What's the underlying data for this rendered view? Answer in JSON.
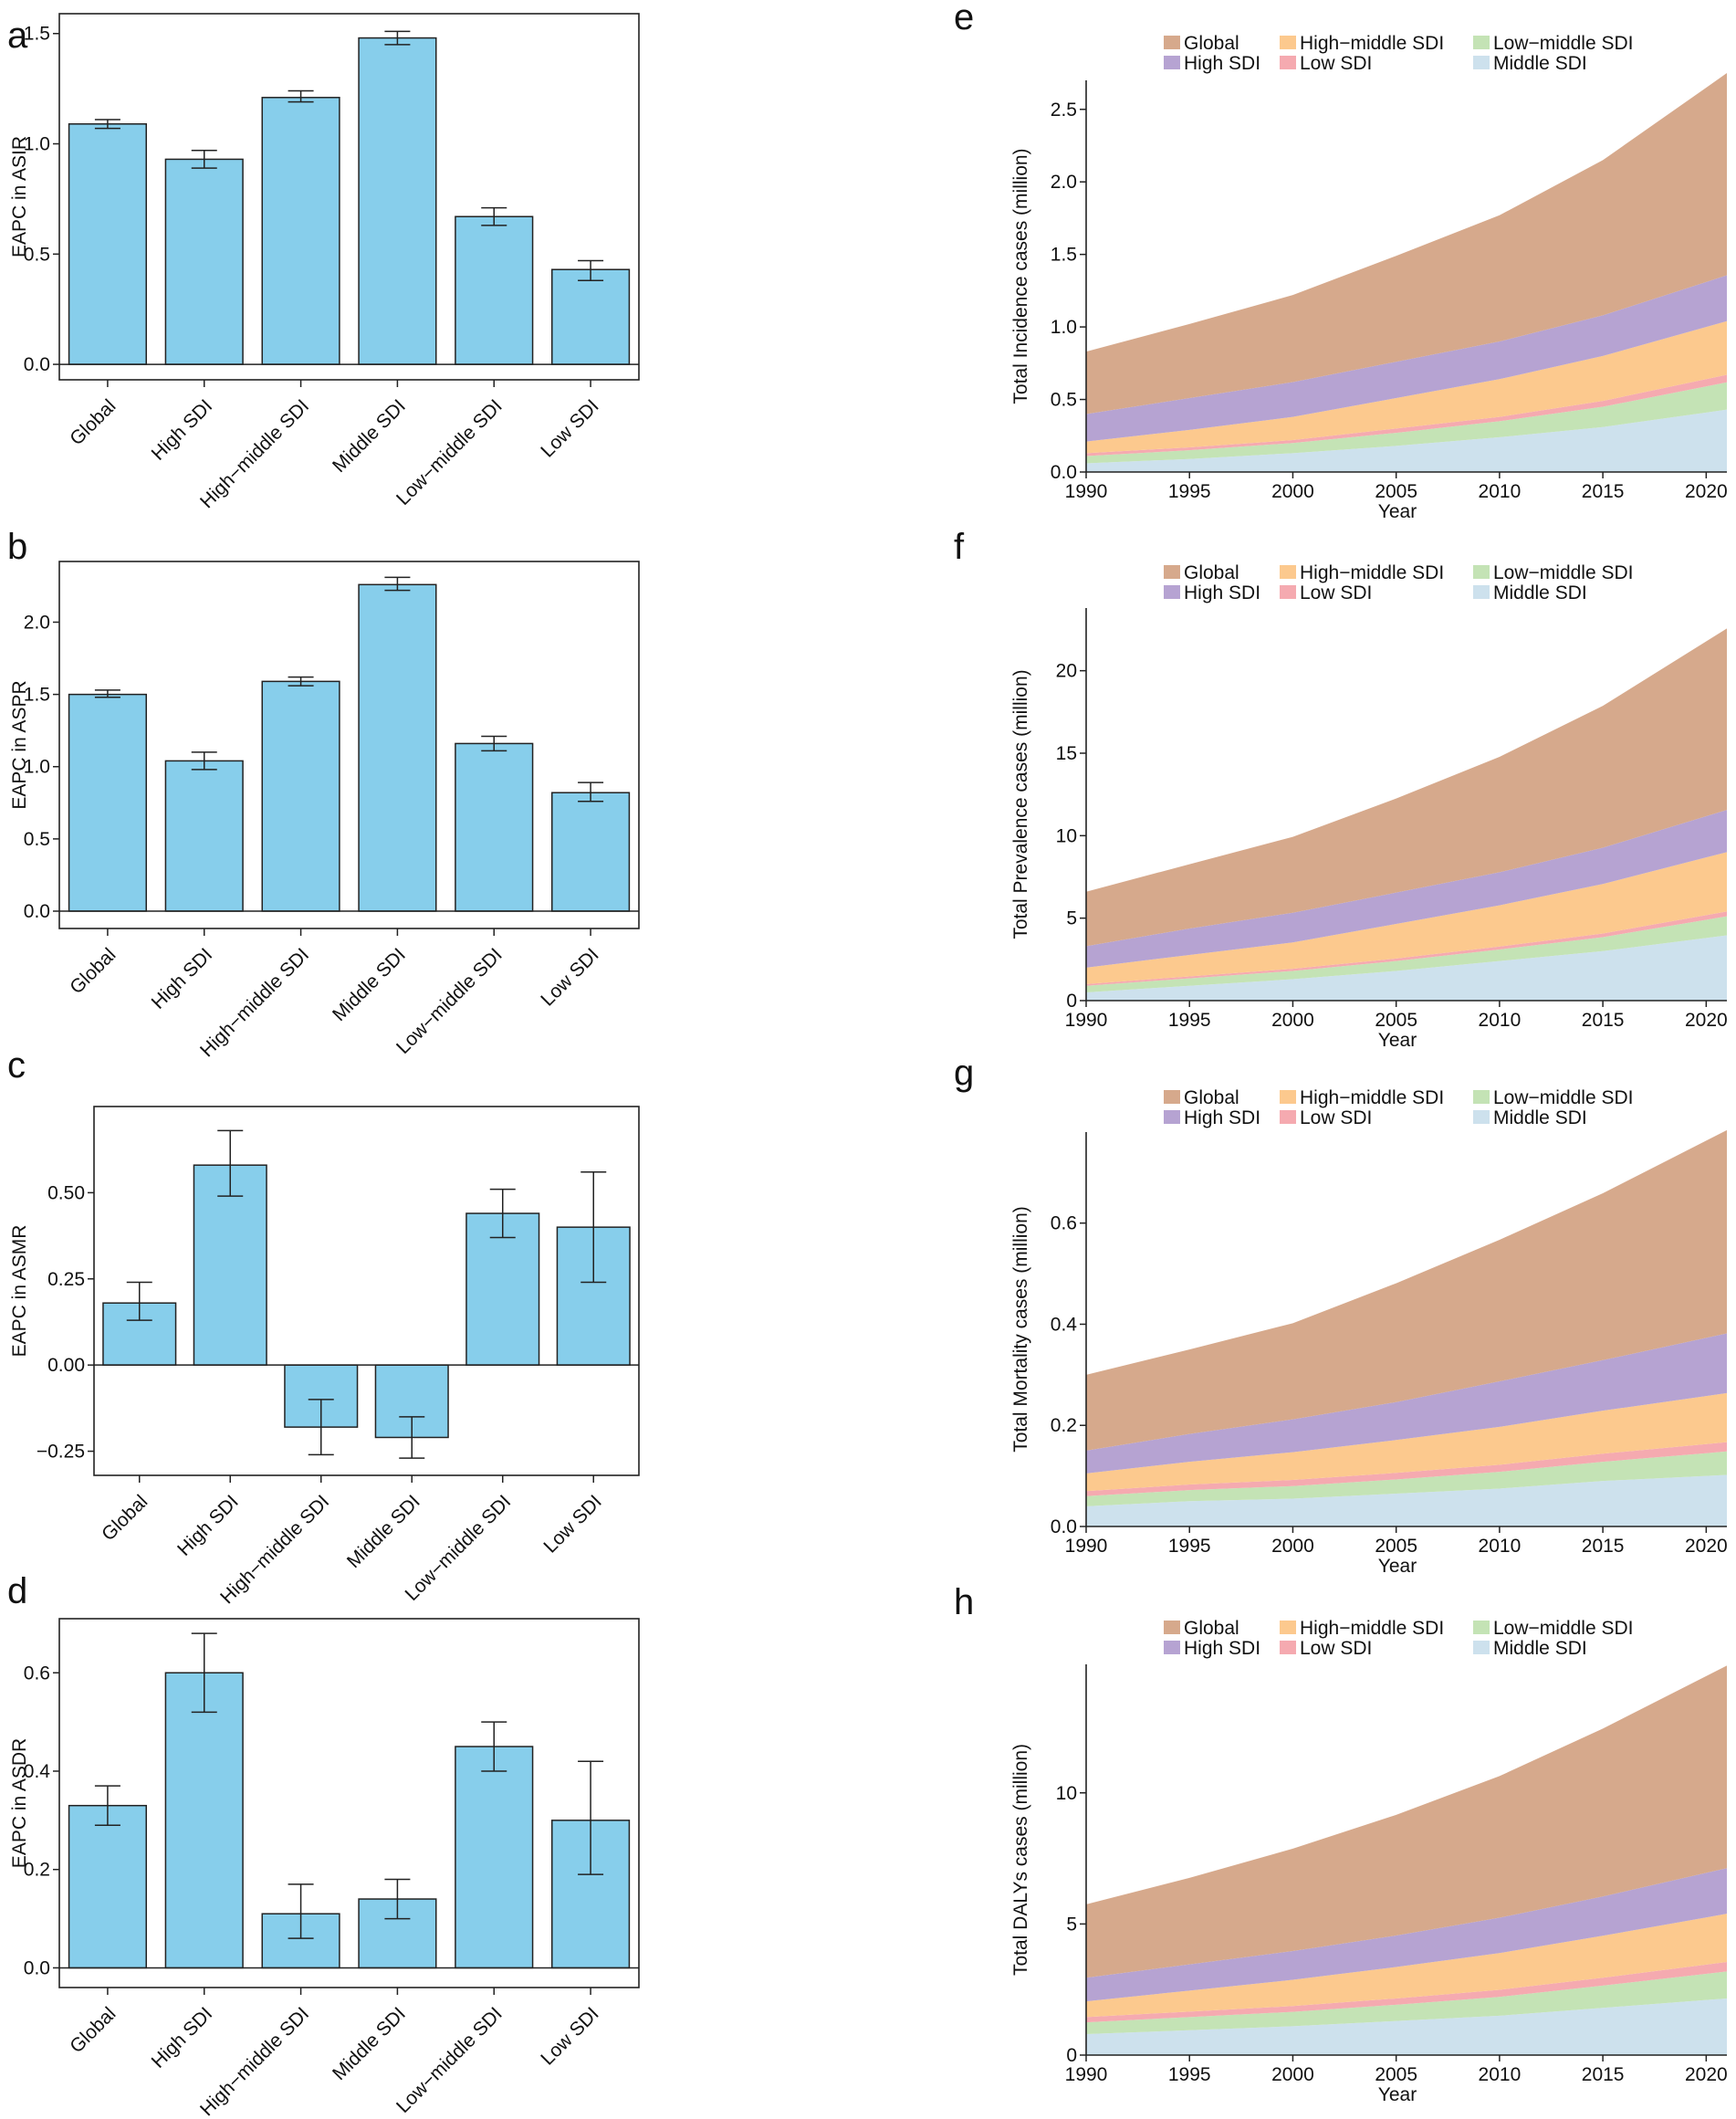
{
  "chart_data": [
    {
      "panel": "a",
      "type": "bar",
      "ylabel": "EAPC in ASIR",
      "categories": [
        "Global",
        "High SDI",
        "High−middle SDI",
        "Middle SDI",
        "Low−middle SDI",
        "Low SDI"
      ],
      "values": [
        1.09,
        0.93,
        1.21,
        1.48,
        0.67,
        0.43
      ],
      "ci_low": [
        1.07,
        0.89,
        1.19,
        1.45,
        0.63,
        0.38
      ],
      "ci_high": [
        1.11,
        0.97,
        1.24,
        1.51,
        0.71,
        0.47
      ],
      "ylim": [
        -0.07,
        1.59
      ],
      "yticks": [
        0,
        0.5,
        1,
        1.5
      ],
      "ytick_labels": [
        "0.0",
        "0.5",
        "1.0",
        "1.5"
      ],
      "bar_color": "#87ceeb"
    },
    {
      "panel": "b",
      "type": "bar",
      "ylabel": "EAPC in ASPR",
      "categories": [
        "Global",
        "High SDI",
        "High−middle SDI",
        "Middle SDI",
        "Low−middle SDI",
        "Low SDI"
      ],
      "values": [
        1.5,
        1.04,
        1.59,
        2.26,
        1.16,
        0.82
      ],
      "ci_low": [
        1.48,
        0.98,
        1.56,
        2.22,
        1.11,
        0.76
      ],
      "ci_high": [
        1.53,
        1.1,
        1.62,
        2.31,
        1.21,
        0.89
      ],
      "ylim": [
        -0.12,
        2.42
      ],
      "yticks": [
        0,
        0.5,
        1,
        1.5,
        2
      ],
      "ytick_labels": [
        "0.0",
        "0.5",
        "1.0",
        "1.5",
        "2.0"
      ],
      "bar_color": "#87ceeb"
    },
    {
      "panel": "c",
      "type": "bar",
      "ylabel": "EAPC in ASMR",
      "categories": [
        "Global",
        "High SDI",
        "High−middle SDI",
        "Middle SDI",
        "Low−middle SDI",
        "Low SDI"
      ],
      "values": [
        0.18,
        0.58,
        -0.18,
        -0.21,
        0.44,
        0.4
      ],
      "ci_low": [
        0.13,
        0.49,
        -0.26,
        -0.27,
        0.37,
        0.24
      ],
      "ci_high": [
        0.24,
        0.68,
        -0.1,
        -0.15,
        0.51,
        0.56
      ],
      "ylim": [
        -0.32,
        0.75
      ],
      "yticks": [
        -0.25,
        0,
        0.25,
        0.5
      ],
      "ytick_labels": [
        "−0.25",
        "0.00",
        "0.25",
        "0.50"
      ],
      "bar_color": "#87ceeb"
    },
    {
      "panel": "d",
      "type": "bar",
      "ylabel": "EAPC in ASDR",
      "categories": [
        "Global",
        "High SDI",
        "High−middle SDI",
        "Middle SDI",
        "Low−middle SDI",
        "Low SDI"
      ],
      "values": [
        0.33,
        0.6,
        0.11,
        0.14,
        0.45,
        0.3
      ],
      "ci_low": [
        0.29,
        0.52,
        0.06,
        0.1,
        0.4,
        0.19
      ],
      "ci_high": [
        0.37,
        0.68,
        0.17,
        0.18,
        0.5,
        0.42
      ],
      "ylim": [
        -0.04,
        0.71
      ],
      "yticks": [
        0,
        0.2,
        0.4,
        0.6
      ],
      "ytick_labels": [
        "0.0",
        "0.2",
        "0.4",
        "0.6"
      ],
      "bar_color": "#87ceeb"
    },
    {
      "panel": "e",
      "type": "area",
      "ylabel": "Total Incidence cases (million)",
      "xlabel": "Year",
      "x": [
        1990,
        1995,
        2000,
        2005,
        2010,
        2015,
        2020
      ],
      "series": [
        {
          "name": "Middle SDI",
          "values": [
            0.06,
            0.09,
            0.13,
            0.18,
            0.24,
            0.31,
            0.41
          ]
        },
        {
          "name": "Low−middle SDI",
          "values": [
            0.05,
            0.06,
            0.07,
            0.09,
            0.11,
            0.14,
            0.18
          ]
        },
        {
          "name": "Low SDI",
          "values": [
            0.02,
            0.02,
            0.02,
            0.03,
            0.03,
            0.04,
            0.05
          ]
        },
        {
          "name": "High−middle SDI",
          "values": [
            0.08,
            0.12,
            0.16,
            0.21,
            0.26,
            0.31,
            0.36
          ]
        },
        {
          "name": "High SDI",
          "values": [
            0.19,
            0.22,
            0.24,
            0.25,
            0.26,
            0.28,
            0.31
          ]
        },
        {
          "name": "Global",
          "values": [
            0.43,
            0.51,
            0.6,
            0.73,
            0.87,
            1.07,
            1.34
          ]
        }
      ],
      "xlim": [
        1990,
        2021
      ],
      "ylim": [
        0,
        2.7
      ],
      "yticks": [
        0,
        0.5,
        1,
        1.5,
        2,
        2.5
      ],
      "ytick_labels": [
        "0.0",
        "0.5",
        "1.0",
        "1.5",
        "2.0",
        "2.5"
      ],
      "xticks": [
        1990,
        1995,
        2000,
        2005,
        2010,
        2015,
        2020
      ]
    },
    {
      "panel": "f",
      "type": "area",
      "ylabel": "Total Prevalence cases (million)",
      "xlabel": "Year",
      "x": [
        1990,
        1995,
        2000,
        2005,
        2010,
        2015,
        2020
      ],
      "series": [
        {
          "name": "Middle SDI",
          "values": [
            0.5,
            0.9,
            1.3,
            1.8,
            2.4,
            3.0,
            3.8
          ]
        },
        {
          "name": "Low−middle SDI",
          "values": [
            0.4,
            0.45,
            0.5,
            0.6,
            0.7,
            0.85,
            1.1
          ]
        },
        {
          "name": "Low SDI",
          "values": [
            0.1,
            0.12,
            0.13,
            0.15,
            0.18,
            0.22,
            0.28
          ]
        },
        {
          "name": "High−middle SDI",
          "values": [
            1.0,
            1.3,
            1.6,
            2.1,
            2.5,
            3.0,
            3.5
          ]
        },
        {
          "name": "High SDI",
          "values": [
            1.3,
            1.6,
            1.8,
            1.9,
            2.0,
            2.2,
            2.5
          ]
        },
        {
          "name": "Global",
          "values": [
            3.3,
            3.9,
            4.6,
            5.7,
            7.0,
            8.6,
            10.6
          ]
        }
      ],
      "xlim": [
        1990,
        2021
      ],
      "ylim": [
        0,
        23.8
      ],
      "yticks": [
        0,
        5,
        10,
        15,
        20
      ],
      "ytick_labels": [
        "0",
        "5",
        "10",
        "15",
        "20"
      ],
      "xticks": [
        1990,
        1995,
        2000,
        2005,
        2010,
        2015,
        2020
      ]
    },
    {
      "panel": "g",
      "type": "area",
      "ylabel": "Total Mortality cases (million)",
      "xlabel": "Year",
      "x": [
        1990,
        1995,
        2000,
        2005,
        2010,
        2015,
        2020
      ],
      "series": [
        {
          "name": "Middle SDI",
          "values": [
            0.04,
            0.05,
            0.055,
            0.065,
            0.075,
            0.09,
            0.1
          ]
        },
        {
          "name": "Low−middle SDI",
          "values": [
            0.02,
            0.022,
            0.025,
            0.028,
            0.033,
            0.038,
            0.045
          ]
        },
        {
          "name": "Low SDI",
          "values": [
            0.01,
            0.011,
            0.012,
            0.013,
            0.014,
            0.016,
            0.018
          ]
        },
        {
          "name": "High−middle SDI",
          "values": [
            0.035,
            0.045,
            0.055,
            0.065,
            0.075,
            0.085,
            0.095
          ]
        },
        {
          "name": "High SDI",
          "values": [
            0.045,
            0.055,
            0.065,
            0.075,
            0.09,
            0.1,
            0.115
          ]
        },
        {
          "name": "Global",
          "values": [
            0.15,
            0.167,
            0.19,
            0.235,
            0.28,
            0.33,
            0.39
          ]
        }
      ],
      "xlim": [
        1990,
        2021
      ],
      "ylim": [
        0,
        0.78
      ],
      "yticks": [
        0,
        0.2,
        0.4,
        0.6
      ],
      "ytick_labels": [
        "0.0",
        "0.2",
        "0.4",
        "0.6"
      ],
      "xticks": [
        1990,
        1995,
        2000,
        2005,
        2010,
        2015,
        2020
      ]
    },
    {
      "panel": "h",
      "type": "area",
      "ylabel": "Total DALYs cases (million)",
      "xlabel": "Year",
      "x": [
        1990,
        1995,
        2000,
        2005,
        2010,
        2015,
        2020
      ],
      "series": [
        {
          "name": "Middle SDI",
          "values": [
            0.8,
            0.95,
            1.1,
            1.3,
            1.5,
            1.8,
            2.1
          ]
        },
        {
          "name": "Low−middle SDI",
          "values": [
            0.45,
            0.5,
            0.55,
            0.62,
            0.72,
            0.85,
            1.0
          ]
        },
        {
          "name": "Low SDI",
          "values": [
            0.2,
            0.21,
            0.22,
            0.24,
            0.27,
            0.3,
            0.35
          ]
        },
        {
          "name": "High−middle SDI",
          "values": [
            0.6,
            0.8,
            1.0,
            1.2,
            1.4,
            1.6,
            1.8
          ]
        },
        {
          "name": "High SDI",
          "values": [
            0.9,
            1.0,
            1.1,
            1.2,
            1.35,
            1.5,
            1.7
          ]
        },
        {
          "name": "Global",
          "values": [
            2.8,
            3.3,
            3.9,
            4.6,
            5.4,
            6.4,
            7.5
          ]
        }
      ],
      "xlim": [
        1990,
        2021
      ],
      "ylim": [
        0,
        14.9
      ],
      "yticks": [
        0,
        5,
        10
      ],
      "ytick_labels": [
        "0",
        "5",
        "10"
      ],
      "xticks": [
        1990,
        1995,
        2000,
        2005,
        2010,
        2015,
        2020
      ]
    }
  ],
  "legend": {
    "items": [
      {
        "name": "Global",
        "color": "#d6a98c"
      },
      {
        "name": "High−middle SDI",
        "color": "#fcc98e"
      },
      {
        "name": "Low−middle SDI",
        "color": "#c4e3b5"
      },
      {
        "name": "High SDI",
        "color": "#b6a3d2"
      },
      {
        "name": "Low SDI",
        "color": "#f5aab0"
      },
      {
        "name": "Middle SDI",
        "color": "#cde1ed"
      }
    ]
  }
}
